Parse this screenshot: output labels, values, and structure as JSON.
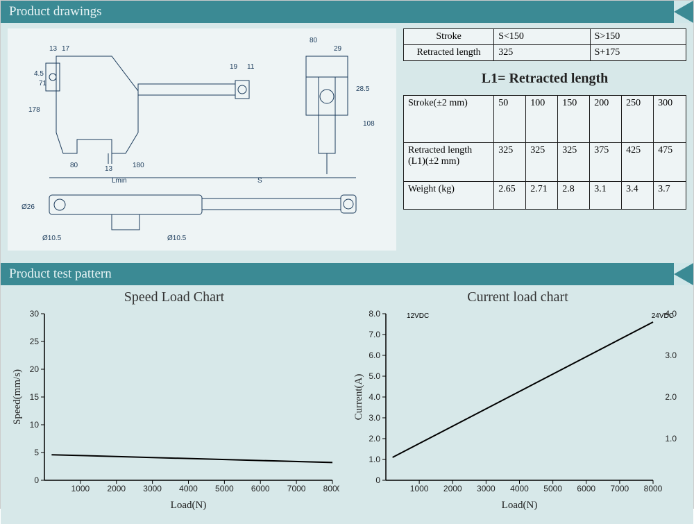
{
  "sections": {
    "drawings_title": "Product drawings",
    "test_title": "Product test pattern"
  },
  "l1_note": "L1= Retracted  length",
  "table1": {
    "rows": [
      [
        "Stroke",
        "S<150",
        "S>150"
      ],
      [
        "Retracted length",
        "325",
        "S+175"
      ]
    ],
    "col_widths": [
      "32%",
      "34%",
      "34%"
    ]
  },
  "table2": {
    "header": [
      "Stroke(±2 mm)",
      "50",
      "100",
      "150",
      "200",
      "250",
      "300"
    ],
    "rows": [
      [
        "Retracted length (L1)(±2 mm)",
        "325",
        "325",
        "325",
        "375",
        "425",
        "475"
      ],
      [
        "Weight (kg)",
        "2.65",
        "2.71",
        "2.8",
        "3.1",
        "3.4",
        "3.7"
      ]
    ],
    "col_widths": [
      "32%",
      "11.3%",
      "11.3%",
      "11.3%",
      "11.3%",
      "11.3%",
      "11.5%"
    ]
  },
  "drawing_dims": {
    "top_labels": [
      "13",
      "17",
      "19",
      "11",
      "29",
      "80"
    ],
    "side_labels": [
      "178",
      "71",
      "4.5",
      "13",
      "80",
      "180",
      "28.5",
      "108"
    ],
    "bottom_labels": [
      "Lmin",
      "S",
      "Ø10.5",
      "Ø10.5",
      "Ø26"
    ]
  },
  "speed_chart": {
    "type": "line",
    "title": "Speed Load Chart",
    "x_label": "Load(N)",
    "y_label": "Speed(mm/s)",
    "xlim": [
      0,
      8000
    ],
    "ylim": [
      0,
      30
    ],
    "x_ticks": [
      1000,
      2000,
      3000,
      4000,
      5000,
      6000,
      7000,
      8000
    ],
    "y_ticks": [
      0,
      5,
      10,
      15,
      20,
      25,
      30
    ],
    "line_color": "#000000",
    "line_width": 2,
    "background_color": "#d7e8e9",
    "plot_background": "#d7e8e9",
    "axis_color": "#000000",
    "grid": false,
    "title_fontsize": 20,
    "label_fontsize": 15,
    "tick_fontsize": 12,
    "data": [
      {
        "x": 200,
        "y": 4.6
      },
      {
        "x": 8000,
        "y": 3.2
      }
    ]
  },
  "current_chart": {
    "type": "line",
    "title": "Current load chart",
    "sub_left": "12VDC",
    "sub_right": "24VDC",
    "x_label": "Load(N)",
    "y_label": "Current(A)",
    "xlim": [
      0,
      8000
    ],
    "ylim_left": [
      0,
      8.0
    ],
    "ylim_right": [
      0,
      4.0
    ],
    "x_ticks": [
      1000,
      2000,
      3000,
      4000,
      5000,
      6000,
      7000,
      8000
    ],
    "y_ticks_left": [
      0,
      1.0,
      2.0,
      3.0,
      4.0,
      5.0,
      6.0,
      7.0,
      8.0
    ],
    "y_ticks_right": [
      1.0,
      2.0,
      3.0,
      4.0
    ],
    "line_color": "#000000",
    "line_width": 2,
    "background_color": "#d7e8e9",
    "axis_color": "#000000",
    "grid": false,
    "title_fontsize": 20,
    "label_fontsize": 15,
    "tick_fontsize": 12,
    "data": [
      {
        "x": 200,
        "y": 1.1
      },
      {
        "x": 8000,
        "y": 7.6
      }
    ]
  },
  "colors": {
    "header_bg": "#3b8a94",
    "header_text": "#e8f4f5",
    "body_bg": "#d7e8e9",
    "drawing_bg": "#eef4f5",
    "table_border": "#1a1a1a"
  }
}
